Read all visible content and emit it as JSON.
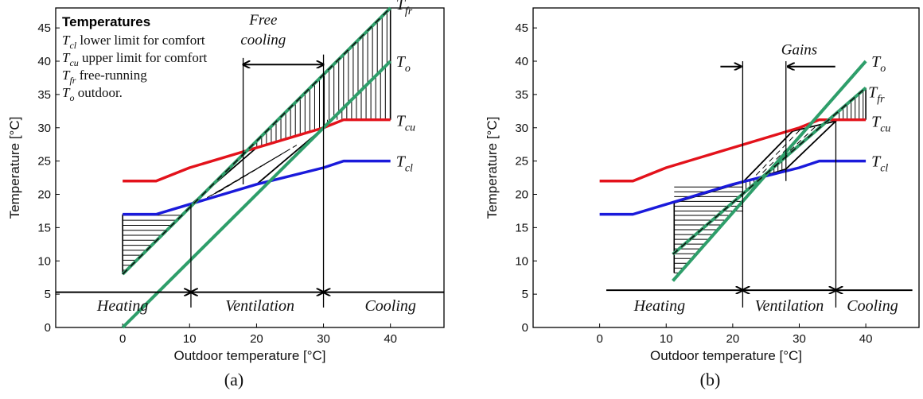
{
  "colors": {
    "comfort_upper": "#e3121b",
    "comfort_lower": "#1a1adb",
    "outdoor": "#2e9e6a",
    "free_running": "#2e9e6a",
    "axis": "#000000"
  },
  "chart_data": [
    {
      "type": "line",
      "caption": "(a)",
      "xlabel": "Outdoor temperature [°C]",
      "ylabel": "Temperature [°C]",
      "xlim": [
        -10,
        48
      ],
      "ylim": [
        0,
        48
      ],
      "xticks": [
        0,
        10,
        20,
        30,
        40
      ],
      "yticks": [
        0,
        5,
        10,
        15,
        20,
        25,
        30,
        35,
        40,
        45
      ],
      "legend_box": {
        "title": "Temperatures",
        "entries": [
          {
            "sym": "T",
            "sub": "cl",
            "text": " lower limit for comfort"
          },
          {
            "sym": "T",
            "sub": "cu",
            "text": " upper limit for comfort"
          },
          {
            "sym": "T",
            "sub": "fr",
            "text": " free-running"
          },
          {
            "sym": "T",
            "sub": "o",
            "text": "  outdoor."
          }
        ]
      },
      "series": [
        {
          "key": "Tcu",
          "sym": "T",
          "sub": "cu",
          "color": "comfort_upper",
          "x": [
            0,
            5,
            10,
            20,
            30,
            33,
            40
          ],
          "y": [
            22,
            22,
            24,
            27,
            30,
            31.2,
            31.2
          ]
        },
        {
          "key": "Tcl",
          "sym": "T",
          "sub": "cl",
          "color": "comfort_lower",
          "x": [
            0,
            5,
            10,
            20,
            30,
            33,
            40
          ],
          "y": [
            17,
            17,
            18.5,
            21.5,
            24,
            25,
            25
          ]
        },
        {
          "key": "To",
          "sym": "T",
          "sub": "o",
          "color": "outdoor",
          "x": [
            0,
            40
          ],
          "y": [
            0,
            40
          ]
        },
        {
          "key": "Tfr",
          "sym": "T",
          "sub": "fr",
          "color": "free_running",
          "dashed": true,
          "x": [
            0,
            40
          ],
          "y": [
            8,
            48
          ]
        }
      ],
      "vlines": [
        {
          "x": 10.2,
          "y": [
            3,
            18.5
          ]
        },
        {
          "x": 18,
          "y": [
            21.5,
            40.5
          ]
        },
        {
          "x": 30,
          "y": [
            3,
            41
          ]
        }
      ],
      "annotations": [
        {
          "text": "Free",
          "x": 21,
          "y": 45.5
        },
        {
          "text": "cooling",
          "x": 21,
          "y": 42.5
        }
      ],
      "free_cooling_arrow": {
        "x": [
          18,
          30
        ],
        "y": 39.5
      },
      "zones": [
        {
          "label": "Heating",
          "x0": -10,
          "x1": 10.2,
          "label_x": 0,
          "dir": "right"
        },
        {
          "label": "Ventilation",
          "x0": 10.2,
          "x1": 30,
          "label_x": 20.5,
          "dir": "both"
        },
        {
          "label": "Cooling",
          "x0": 30,
          "x1": 48,
          "label_x": 40,
          "dir": "left"
        }
      ],
      "zone_arrow_y": 5.3,
      "zone_label_y": 2.5
    },
    {
      "type": "line",
      "caption": "(b)",
      "xlabel": "Outdoor temperature [°C]",
      "ylabel": "Temperature [°C]",
      "xlim": [
        -10,
        48
      ],
      "ylim": [
        0,
        48
      ],
      "xticks": [
        0,
        10,
        20,
        30,
        40
      ],
      "yticks": [
        0,
        5,
        10,
        15,
        20,
        25,
        30,
        35,
        40,
        45
      ],
      "series": [
        {
          "key": "Tcu",
          "sym": "T",
          "sub": "cu",
          "color": "comfort_upper",
          "x": [
            0,
            5,
            10,
            20,
            30,
            33,
            40
          ],
          "y": [
            22,
            22,
            24,
            27,
            30,
            31.2,
            31.2
          ]
        },
        {
          "key": "Tcl",
          "sym": "T",
          "sub": "cl",
          "color": "comfort_lower",
          "x": [
            0,
            5,
            10,
            20,
            30,
            33,
            40
          ],
          "y": [
            17,
            17,
            18.5,
            21.5,
            24,
            25,
            25
          ]
        },
        {
          "key": "To",
          "sym": "T",
          "sub": "o",
          "color": "outdoor",
          "x": [
            11,
            40
          ],
          "y": [
            7,
            40
          ]
        },
        {
          "key": "Tfr",
          "sym": "T",
          "sub": "fr",
          "color": "free_running",
          "dashed": true,
          "x": [
            11,
            40
          ],
          "y": [
            11,
            36
          ]
        }
      ],
      "vlines": [
        {
          "x": 21.5,
          "y": [
            3,
            40
          ]
        },
        {
          "x": 28,
          "y": [
            22,
            40
          ]
        },
        {
          "x": 35.5,
          "y": [
            3,
            31
          ]
        }
      ],
      "annotations": [
        {
          "text": "Gains",
          "x": 30,
          "y": 41
        }
      ],
      "gains_arrows": {
        "left_x": 21.5,
        "right_x": 28,
        "y": 39.2
      },
      "zones": [
        {
          "label": "Heating",
          "x0": 1,
          "x1": 21.5,
          "label_x": 9,
          "dir": "right"
        },
        {
          "label": "Ventilation",
          "x0": 21.5,
          "x1": 35.5,
          "label_x": 28.5,
          "dir": "both"
        },
        {
          "label": "Cooling",
          "x0": 35.5,
          "x1": 47,
          "label_x": 41,
          "dir": "left"
        }
      ],
      "zone_arrow_y": 5.6,
      "zone_label_y": 2.5
    }
  ]
}
